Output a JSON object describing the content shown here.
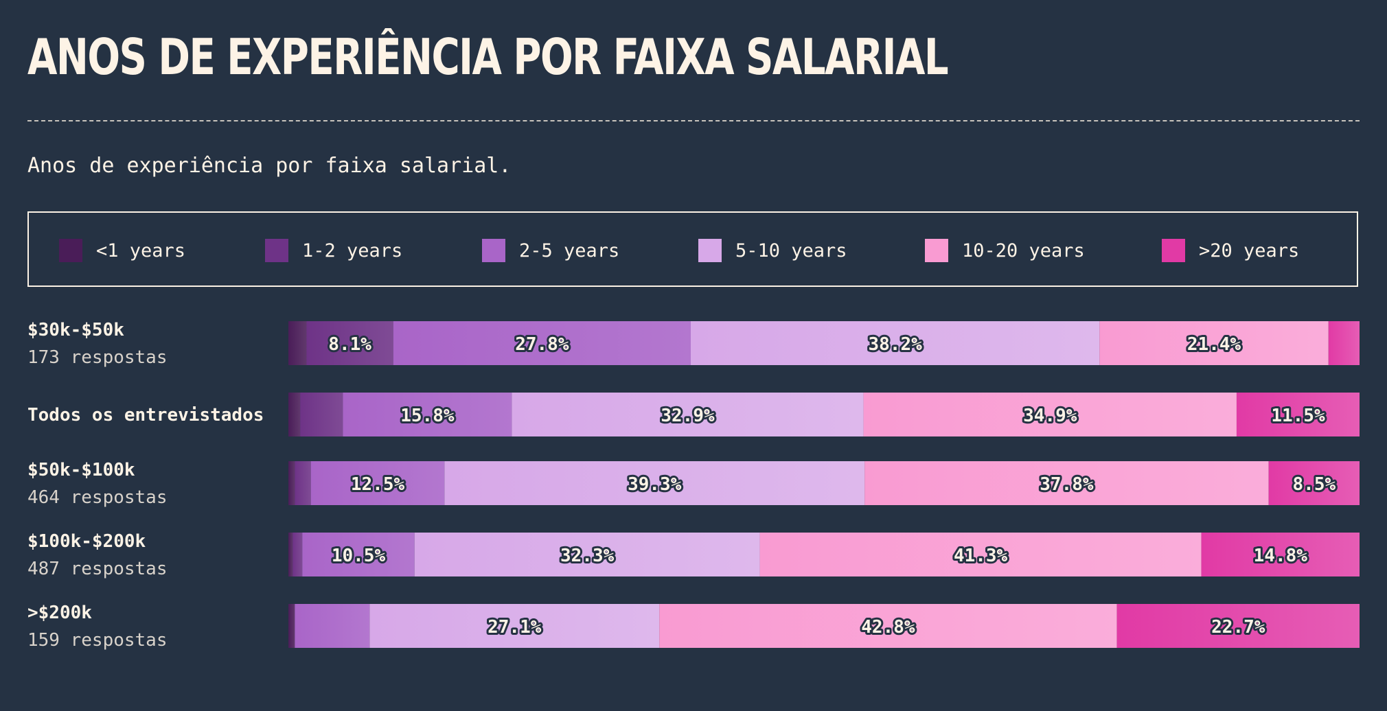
{
  "header": {
    "title": "ANOS DE EXPERIÊNCIA POR FAIXA SALARIAL",
    "subtitle": "Anos de experiência por faixa salarial."
  },
  "chart_data": {
    "type": "bar",
    "orientation": "horizontal",
    "stacked": true,
    "normalized": true,
    "legend": {
      "placement": "top",
      "entries": [
        "<1 years",
        "1-2 years",
        "2-5 years",
        "5-10 years",
        "10-20 years",
        ">20 years"
      ]
    },
    "colors": [
      "#4a1d58",
      "#6e3387",
      "#a965c8",
      "#d7a8e8",
      "#f99bd2",
      "#e13aa5"
    ],
    "categories": [
      {
        "label": "$30k-$50k",
        "sublabel": "173 respostas"
      },
      {
        "label": "Todos os entrevistados",
        "sublabel": ""
      },
      {
        "label": "$50k-$100k",
        "sublabel": "464 respostas"
      },
      {
        "label": "$100k-$200k",
        "sublabel": "487 respostas"
      },
      {
        "label": ">$200k",
        "sublabel": "159 respostas"
      }
    ],
    "series": [
      {
        "name": "<1 years",
        "values": [
          1.7,
          1.1,
          0.6,
          0.4,
          0.6
        ]
      },
      {
        "name": "1-2 years",
        "values": [
          8.1,
          4.0,
          1.5,
          0.9,
          0.0
        ]
      },
      {
        "name": "2-5 years",
        "values": [
          27.8,
          15.8,
          12.5,
          10.5,
          7.0
        ]
      },
      {
        "name": "5-10 years",
        "values": [
          38.2,
          32.9,
          39.3,
          32.3,
          27.1
        ]
      },
      {
        "name": "10-20 years",
        "values": [
          21.4,
          34.9,
          37.8,
          41.3,
          42.8
        ]
      },
      {
        "name": ">20 years",
        "values": [
          2.9,
          11.5,
          8.5,
          14.8,
          22.7
        ]
      }
    ],
    "data_labels": [
      [
        "",
        "8.1%",
        "27.8%",
        "38.2%",
        "21.4%",
        ""
      ],
      [
        "",
        "",
        "15.8%",
        "32.9%",
        "34.9%",
        "11.5%"
      ],
      [
        "",
        "",
        "12.5%",
        "39.3%",
        "37.8%",
        "8.5%"
      ],
      [
        "",
        "",
        "10.5%",
        "32.3%",
        "41.3%",
        "14.8%"
      ],
      [
        "",
        "",
        "",
        "27.1%",
        "42.8%",
        "22.7%"
      ]
    ],
    "xlim": [
      0,
      100
    ]
  }
}
